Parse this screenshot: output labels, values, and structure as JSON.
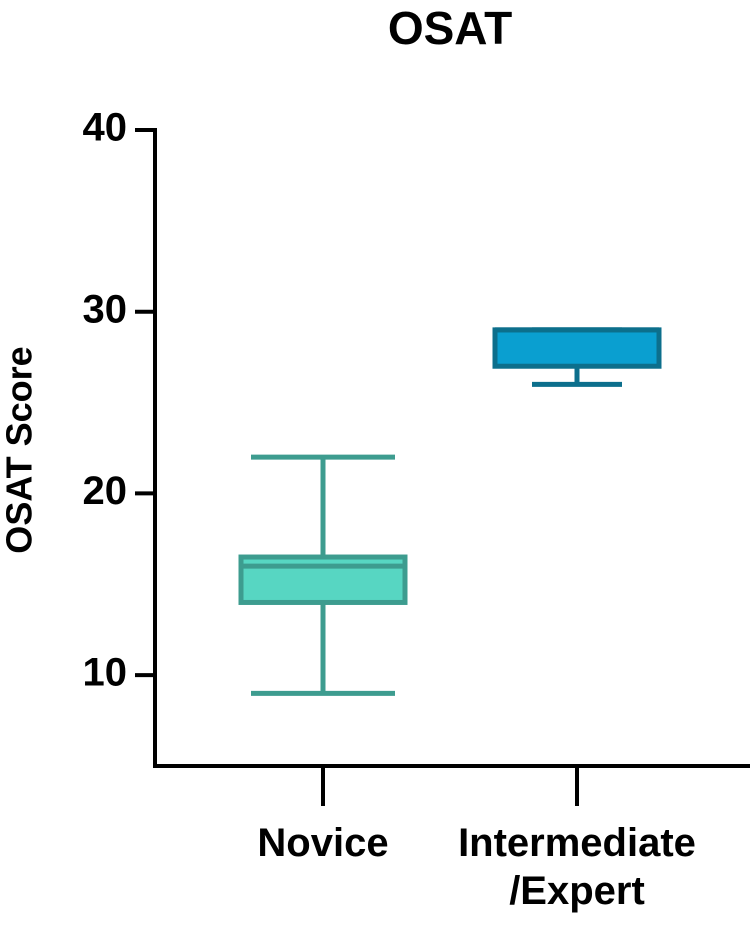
{
  "chart_data": {
    "type": "box",
    "title": "OSAT",
    "ylabel": "OSAT Score",
    "categories": [
      "Novice",
      "Intermediate\n/Expert"
    ],
    "boxes": [
      {
        "min": 9,
        "q1": 14,
        "median": 16,
        "q3": 16.5,
        "max": 22,
        "color": "#57d6c2",
        "edgecolor": "#3d9c8f"
      },
      {
        "min": 26,
        "q1": 27,
        "median": 29,
        "q3": 29,
        "max": 29,
        "color": "#0a9fd0",
        "edgecolor": "#0c6f8c"
      }
    ],
    "ylim": [
      5,
      40
    ],
    "yticks": [
      10,
      20,
      30,
      40
    ]
  }
}
